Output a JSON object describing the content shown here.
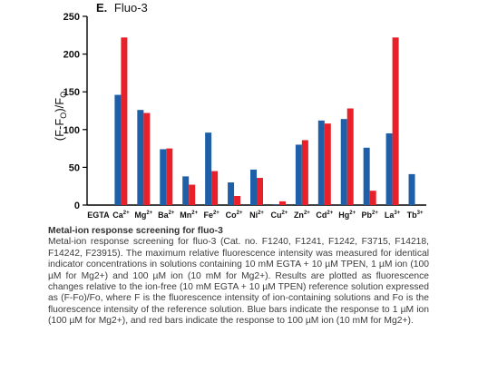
{
  "chart_data": {
    "type": "bar",
    "title_letter": "E.",
    "title": "Fluo-3",
    "ylabel": "(F-F0)/F0",
    "ylabel_parts": {
      "a": "(F-F",
      "b": "O",
      "c": ")/F",
      "d": "O"
    },
    "ylim": [
      0,
      250
    ],
    "yticks": [
      0,
      50,
      100,
      150,
      200,
      250
    ],
    "categories": [
      {
        "base": "EGTA",
        "sup": ""
      },
      {
        "base": "Ca",
        "sup": "2+"
      },
      {
        "base": "Mg",
        "sup": "2+"
      },
      {
        "base": "Ba",
        "sup": "2+"
      },
      {
        "base": "Mn",
        "sup": "2+"
      },
      {
        "base": "Fe",
        "sup": "2+"
      },
      {
        "base": "Co",
        "sup": "2+"
      },
      {
        "base": "Ni",
        "sup": "2+"
      },
      {
        "base": "Cu",
        "sup": "2+"
      },
      {
        "base": "Zn",
        "sup": "2+"
      },
      {
        "base": "Cd",
        "sup": "2+"
      },
      {
        "base": "Hg",
        "sup": "2+"
      },
      {
        "base": "Pb",
        "sup": "2+"
      },
      {
        "base": "La",
        "sup": "3+"
      },
      {
        "base": "Tb",
        "sup": "3+"
      }
    ],
    "series": [
      {
        "color": "#1f5fa8",
        "values": [
          0,
          146,
          126,
          74,
          38,
          96,
          30,
          47,
          1,
          80,
          112,
          114,
          76,
          95,
          41
        ]
      },
      {
        "color": "#e8202a",
        "values": [
          0,
          222,
          122,
          75,
          27,
          45,
          12,
          36,
          5,
          86,
          108,
          128,
          19,
          222,
          0
        ]
      }
    ],
    "grid": false
  },
  "caption": {
    "title": "Metal-ion response screening for fluo-3",
    "body": "Metal-ion response screening for fluo-3 (Cat. no. F1240, F1241, F1242, F3715, F14218, F14242, F23915). The maximum relative fluorescence intensity was measured for identical indicator concentrations in solutions containing 10 mM EGTA + 10 µM TPEN, 1 µM ion (100 µM for Mg2+) and 100 µM ion (10 mM for Mg2+). Results are plotted as fluorescence changes relative to the ion-free (10 mM EGTA + 10 µM TPEN) reference solution expressed as (F-Fo)/Fo, where F is the fluorescence intensity of ion-containing solutions and Fo is the fluorescence intensity of the reference solution. Blue bars indicate the response to 1 µM ion (100 µM for Mg2+), and red bars indicate the response to 100 µM ion (10 mM for Mg2+)."
  }
}
